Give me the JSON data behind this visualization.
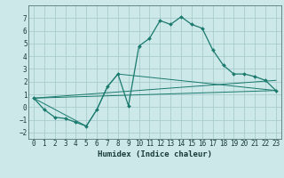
{
  "xlabel": "Humidex (Indice chaleur)",
  "background_color": "#cce8e8",
  "grid_color": "#aacccc",
  "line_color": "#1a7a6e",
  "xlim": [
    -0.5,
    23.5
  ],
  "ylim": [
    -2.5,
    8.0
  ],
  "xticks": [
    0,
    1,
    2,
    3,
    4,
    5,
    6,
    7,
    8,
    9,
    10,
    11,
    12,
    13,
    14,
    15,
    16,
    17,
    18,
    19,
    20,
    21,
    22,
    23
  ],
  "yticks": [
    -2,
    -1,
    0,
    1,
    2,
    3,
    4,
    5,
    6,
    7
  ],
  "series_main": {
    "x": [
      0,
      1,
      2,
      3,
      4,
      5,
      6,
      7,
      8,
      9,
      10,
      11,
      12,
      13,
      14,
      15,
      16,
      17,
      18,
      19,
      20,
      21,
      22,
      23
    ],
    "y": [
      0.7,
      -0.2,
      -0.8,
      -0.9,
      -1.2,
      -1.5,
      -0.2,
      1.6,
      2.6,
      0.1,
      4.8,
      5.4,
      6.8,
      6.5,
      7.1,
      6.5,
      6.2,
      4.5,
      3.3,
      2.6,
      2.6,
      2.4,
      2.1,
      1.3
    ]
  },
  "series_extra": [
    {
      "x": [
        0,
        5,
        6,
        7,
        8,
        23
      ],
      "y": [
        0.7,
        -1.5,
        -0.2,
        1.6,
        2.6,
        1.3
      ]
    },
    {
      "x": [
        0,
        23
      ],
      "y": [
        0.7,
        1.3
      ]
    },
    {
      "x": [
        0,
        23
      ],
      "y": [
        0.7,
        2.1
      ]
    }
  ]
}
